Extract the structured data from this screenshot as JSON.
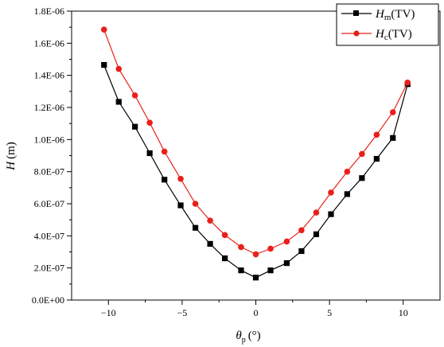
{
  "chart_data": {
    "type": "line",
    "xlabel": {
      "symbol": "θ",
      "subscript": "p",
      "unit": "(°)"
    },
    "ylabel": {
      "symbol": "H",
      "unit": "(m)"
    },
    "xlim": [
      -12.5,
      12.5
    ],
    "ylim": [
      0,
      1.8e-06
    ],
    "xticks": [
      -10,
      -5,
      0,
      5,
      10
    ],
    "xtick_labels": [
      "−10",
      "−5",
      "0",
      "5",
      "10"
    ],
    "yticks": [
      0,
      2e-07,
      4e-07,
      6e-07,
      8e-07,
      1e-06,
      1.2e-06,
      1.4e-06,
      1.6e-06,
      1.8e-06
    ],
    "ytick_labels": [
      "0.0E+00",
      "2.0E-07",
      "4.0E-07",
      "6.0E-07",
      "8.0E-07",
      "1.0E-06",
      "1.2E-06",
      "1.4E-06",
      "1.6E-06",
      "1.8E-06"
    ],
    "legend_position": "top-right",
    "x": [
      -10.3,
      -9.3,
      -8.2,
      -7.2,
      -6.2,
      -5.1,
      -4.1,
      -3.1,
      -2.1,
      -1.0,
      0,
      1.0,
      2.1,
      3.1,
      4.1,
      5.1,
      6.2,
      7.2,
      8.2,
      9.3,
      10.3
    ],
    "series": [
      {
        "name": "H",
        "name_sub": "m",
        "name_suffix": "(TV)",
        "color": "#000000",
        "marker": "square",
        "values": [
          1.465e-06,
          1.235e-06,
          1.08e-06,
          9.15e-07,
          7.5e-07,
          5.9e-07,
          4.5e-07,
          3.5e-07,
          2.6e-07,
          1.85e-07,
          1.4e-07,
          1.85e-07,
          2.3e-07,
          3.05e-07,
          4.1e-07,
          5.35e-07,
          6.6e-07,
          7.6e-07,
          8.8e-07,
          1.01e-06,
          1.345e-06
        ]
      },
      {
        "name": "H",
        "name_sub": "c",
        "name_suffix": "(TV)",
        "color": "#e8201b",
        "marker": "circle",
        "values": [
          1.685e-06,
          1.44e-06,
          1.275e-06,
          1.105e-06,
          9.25e-07,
          7.55e-07,
          6e-07,
          4.95e-07,
          4.05e-07,
          3.3e-07,
          2.85e-07,
          3.2e-07,
          3.65e-07,
          4.35e-07,
          5.45e-07,
          6.7e-07,
          8e-07,
          9.1e-07,
          1.03e-06,
          1.17e-06,
          1.355e-06
        ]
      }
    ]
  }
}
